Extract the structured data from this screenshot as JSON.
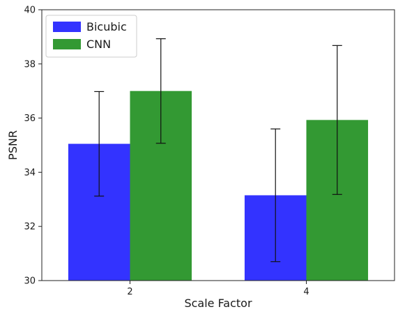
{
  "chart_data": {
    "type": "bar",
    "title": "",
    "xlabel": "Scale Factor",
    "ylabel": "PSNR",
    "categories": [
      "2",
      "4"
    ],
    "ylim": [
      30,
      40
    ],
    "yticks": [
      30,
      32,
      34,
      36,
      38,
      40
    ],
    "grid": false,
    "legend_position": "top-left",
    "series": [
      {
        "name": "Bicubic",
        "color": "#3333ff",
        "values": [
          35.05,
          33.15
        ],
        "error": [
          1.93,
          2.45
        ]
      },
      {
        "name": "CNN",
        "color": "#339933",
        "values": [
          37.0,
          35.93
        ],
        "error": [
          1.93,
          2.75
        ]
      }
    ]
  }
}
